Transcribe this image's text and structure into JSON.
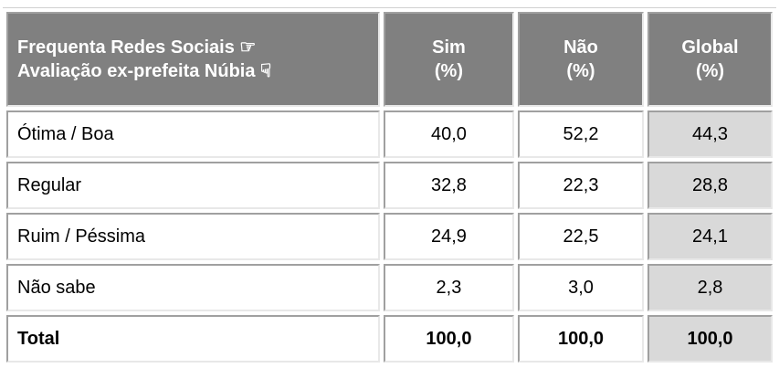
{
  "header": {
    "row_label": [
      "Frequenta Redes Sociais ☞",
      "Avaliação ex-prefeita Núbia ☟"
    ],
    "columns": [
      [
        "Sim",
        "(%)"
      ],
      [
        "Não",
        "(%)"
      ],
      [
        "Global",
        "(%)"
      ]
    ]
  },
  "table": {
    "rows": [
      [
        "Ótima / Boa",
        "40,0",
        "52,2",
        "44,3"
      ],
      [
        "Regular",
        "32,8",
        "22,3",
        "28,8"
      ],
      [
        "Ruim / Péssima",
        "24,9",
        "22,5",
        "24,1"
      ],
      [
        "Não sabe",
        "2,3",
        "3,0",
        "2,8"
      ],
      [
        "Total",
        "100,0",
        "100,0",
        "100,0"
      ]
    ]
  }
}
